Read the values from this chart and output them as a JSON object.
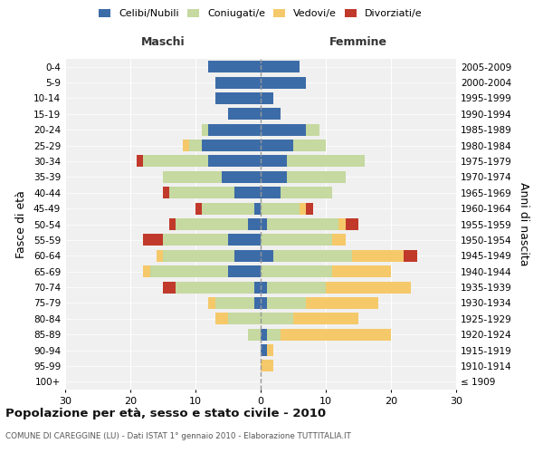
{
  "age_groups": [
    "100+",
    "95-99",
    "90-94",
    "85-89",
    "80-84",
    "75-79",
    "70-74",
    "65-69",
    "60-64",
    "55-59",
    "50-54",
    "45-49",
    "40-44",
    "35-39",
    "30-34",
    "25-29",
    "20-24",
    "15-19",
    "10-14",
    "5-9",
    "0-4"
  ],
  "birth_years": [
    "≤ 1909",
    "1910-1914",
    "1915-1919",
    "1920-1924",
    "1925-1929",
    "1930-1934",
    "1935-1939",
    "1940-1944",
    "1945-1949",
    "1950-1954",
    "1955-1959",
    "1960-1964",
    "1965-1969",
    "1970-1974",
    "1975-1979",
    "1980-1984",
    "1985-1989",
    "1990-1994",
    "1995-1999",
    "2000-2004",
    "2005-2009"
  ],
  "male": {
    "celibe": [
      0,
      0,
      0,
      0,
      0,
      1,
      1,
      5,
      4,
      5,
      2,
      1,
      4,
      6,
      8,
      9,
      8,
      5,
      7,
      7,
      8
    ],
    "coniugato": [
      0,
      0,
      0,
      2,
      5,
      6,
      12,
      12,
      11,
      10,
      11,
      8,
      10,
      9,
      10,
      2,
      1,
      0,
      0,
      0,
      0
    ],
    "vedovo": [
      0,
      0,
      0,
      0,
      2,
      1,
      0,
      1,
      1,
      0,
      0,
      0,
      0,
      0,
      0,
      1,
      0,
      0,
      0,
      0,
      0
    ],
    "divorziato": [
      0,
      0,
      0,
      0,
      0,
      0,
      2,
      0,
      0,
      3,
      1,
      1,
      1,
      0,
      1,
      0,
      0,
      0,
      0,
      0,
      0
    ]
  },
  "female": {
    "nubile": [
      0,
      0,
      1,
      1,
      0,
      1,
      1,
      0,
      2,
      0,
      1,
      0,
      3,
      4,
      4,
      5,
      7,
      3,
      2,
      7,
      6
    ],
    "coniugata": [
      0,
      0,
      0,
      2,
      5,
      6,
      9,
      11,
      12,
      11,
      11,
      6,
      8,
      9,
      12,
      5,
      2,
      0,
      0,
      0,
      0
    ],
    "vedova": [
      0,
      2,
      1,
      17,
      10,
      11,
      13,
      9,
      8,
      2,
      1,
      1,
      0,
      0,
      0,
      0,
      0,
      0,
      0,
      0,
      0
    ],
    "divorziata": [
      0,
      0,
      0,
      0,
      0,
      0,
      0,
      0,
      2,
      0,
      2,
      1,
      0,
      0,
      0,
      0,
      0,
      0,
      0,
      0,
      0
    ]
  },
  "colors": {
    "celibe": "#3c6ca8",
    "coniugato": "#c5d9a0",
    "vedovo": "#f5c96a",
    "divorziato": "#c0392b"
  },
  "xlim": 30,
  "title": "Popolazione per età, sesso e stato civile - 2010",
  "subtitle": "COMUNE DI CAREGGINE (LU) - Dati ISTAT 1° gennaio 2010 - Elaborazione TUTTITALIA.IT",
  "ylabel": "Fasce di età",
  "ylabel_right": "Anni di nascita",
  "xlabel_left": "Maschi",
  "xlabel_right": "Femmine",
  "legend_labels": [
    "Celibi/Nubili",
    "Coniugati/e",
    "Vedovi/e",
    "Divorziati/e"
  ],
  "background_color": "#f0f0f0"
}
